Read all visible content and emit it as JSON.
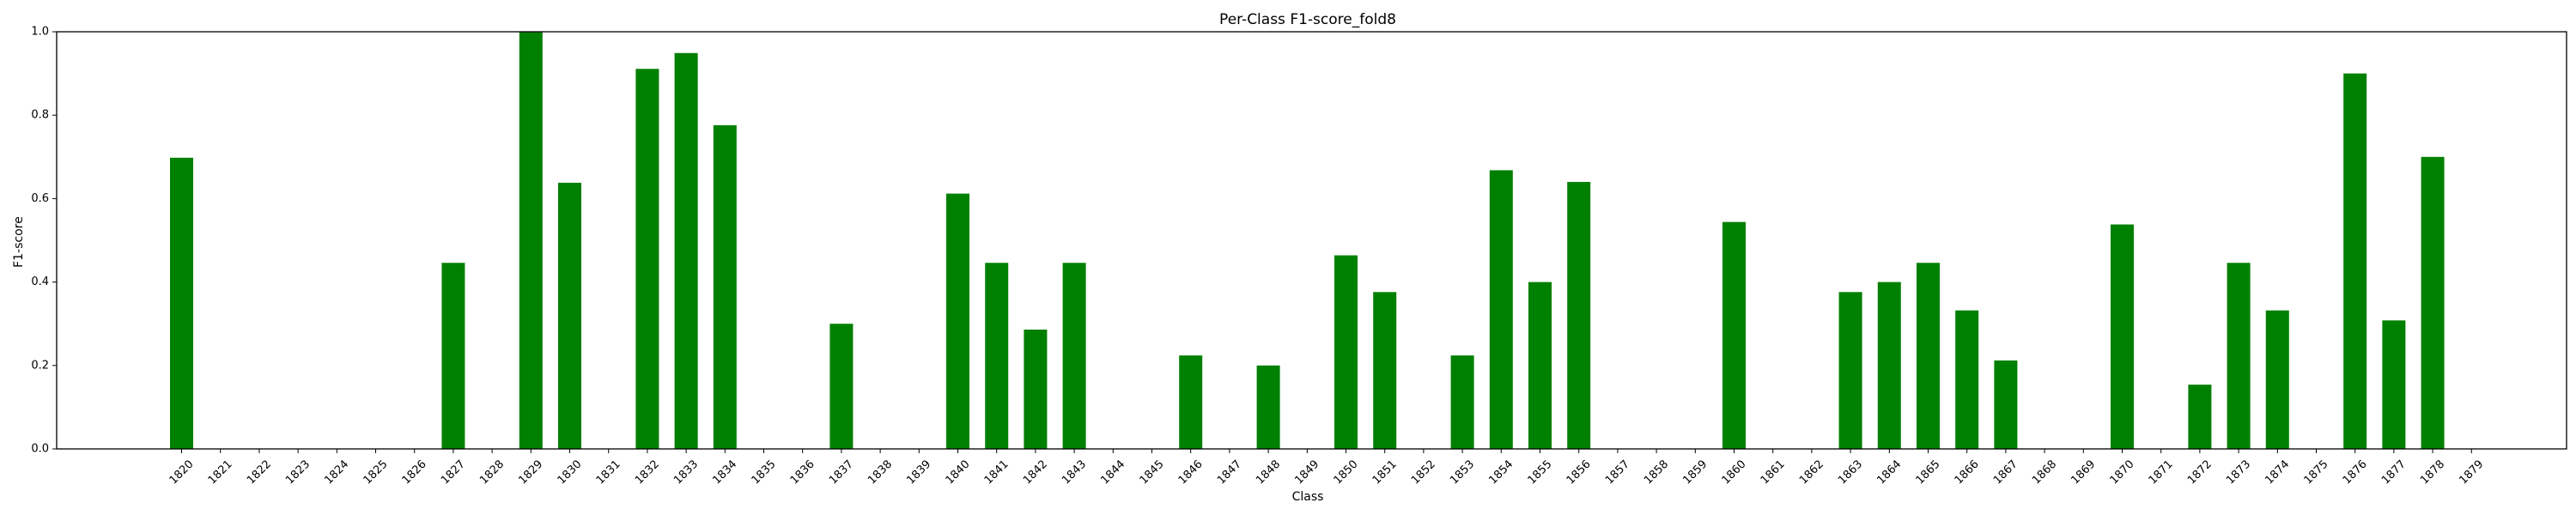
{
  "chart_data": {
    "type": "bar",
    "title": "Per-Class F1-score_fold8",
    "xlabel": "Class",
    "ylabel": "F1-score",
    "ylim": [
      0,
      1
    ],
    "yticks": [
      "0.0",
      "0.2",
      "0.4",
      "0.6",
      "0.8",
      "1.0"
    ],
    "grid": false,
    "bar_color": "#008000",
    "categories": [
      "1820",
      "1821",
      "1822",
      "1823",
      "1824",
      "1825",
      "1826",
      "1827",
      "1828",
      "1829",
      "1830",
      "1831",
      "1832",
      "1833",
      "1834",
      "1835",
      "1836",
      "1837",
      "1838",
      "1839",
      "1840",
      "1841",
      "1842",
      "1843",
      "1844",
      "1845",
      "1846",
      "1847",
      "1848",
      "1849",
      "1850",
      "1851",
      "1852",
      "1853",
      "1854",
      "1855",
      "1856",
      "1857",
      "1858",
      "1859",
      "1860",
      "1861",
      "1862",
      "1863",
      "1864",
      "1865",
      "1866",
      "1867",
      "1868",
      "1869",
      "1870",
      "1871",
      "1872",
      "1873",
      "1874",
      "1875",
      "1876",
      "1877",
      "1878",
      "1879"
    ],
    "values": [
      0.698,
      0,
      0,
      0,
      0,
      0,
      0,
      0.446,
      0,
      1.0,
      0.638,
      0,
      0.911,
      0.949,
      0.776,
      0,
      0,
      0.3,
      0,
      0,
      0.612,
      0.446,
      0.286,
      0.446,
      0,
      0,
      0.224,
      0,
      0.2,
      0,
      0.464,
      0.376,
      0,
      0.224,
      0.668,
      0.4,
      0.64,
      0,
      0,
      0,
      0.544,
      0,
      0,
      0.376,
      0.4,
      0.446,
      0.332,
      0.212,
      0,
      0,
      0.538,
      0,
      0.154,
      0.446,
      0.332,
      0,
      0.9,
      0.308,
      0.7,
      0
    ]
  }
}
